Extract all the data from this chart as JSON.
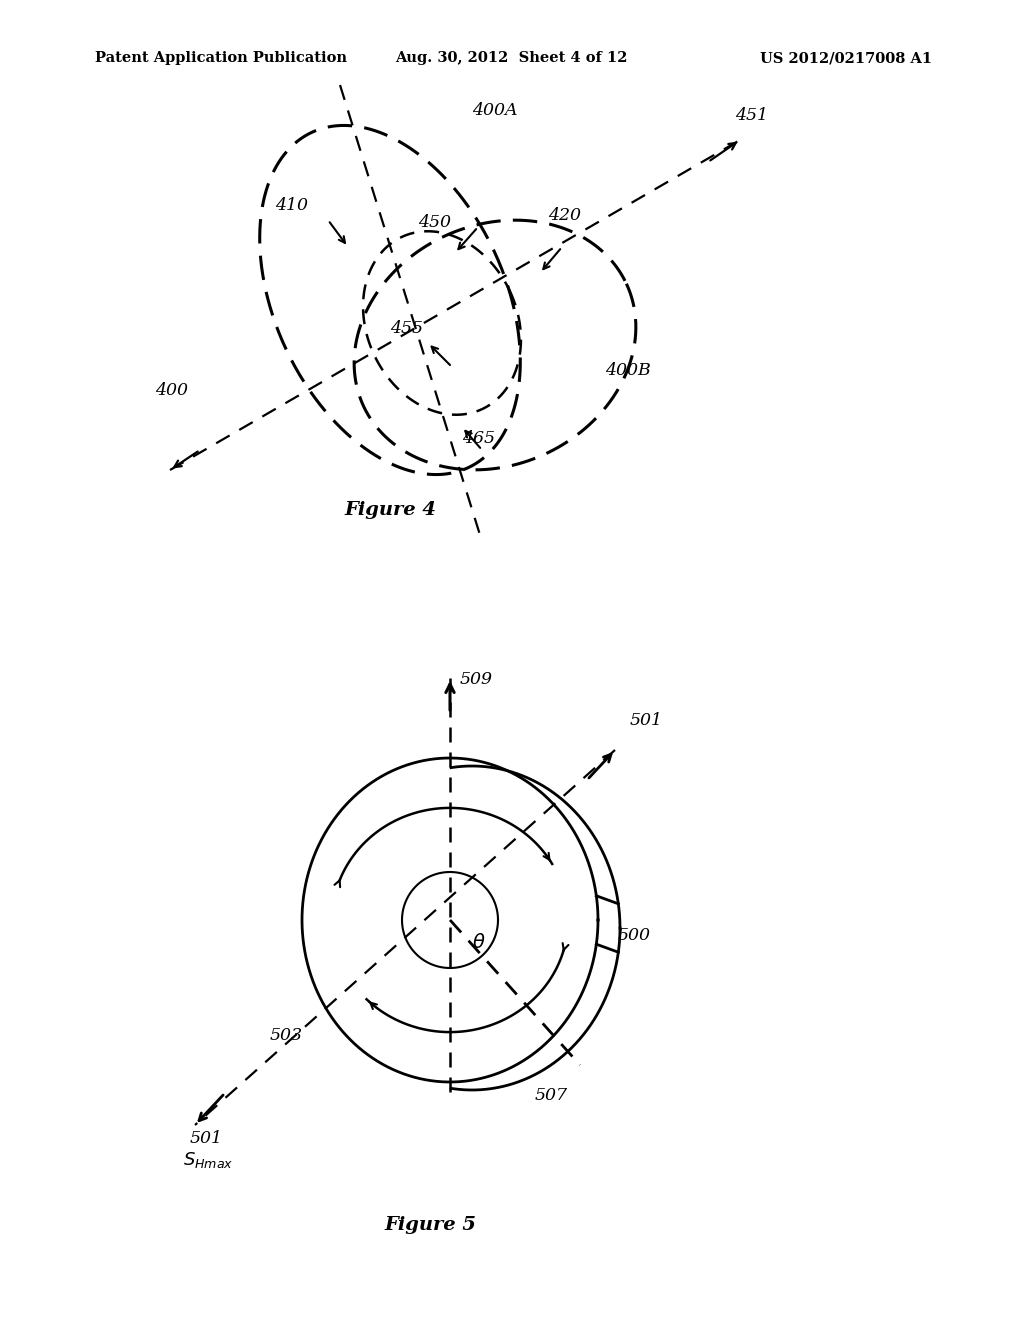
{
  "header_left": "Patent Application Publication",
  "header_mid": "Aug. 30, 2012  Sheet 4 of 12",
  "header_right": "US 2012/0217008 A1",
  "fig4_caption": "Figure 4",
  "fig5_caption": "Figure 5",
  "bg_color": "#ffffff",
  "line_color": "#000000"
}
